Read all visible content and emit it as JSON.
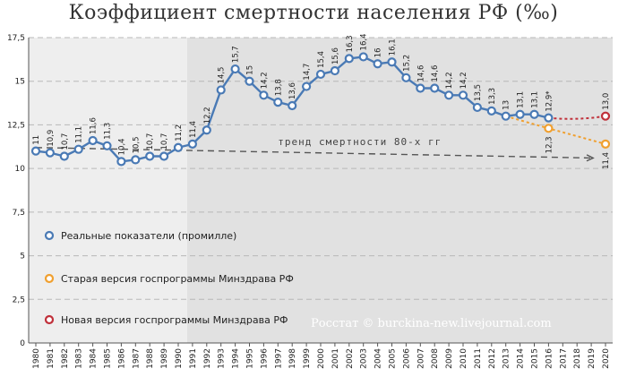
{
  "chart_data": {
    "type": "line",
    "title": "Коэффициент смертности населения РФ (‰)",
    "ylim": [
      0,
      17.5
    ],
    "y_ticks": [
      "0",
      "2,5",
      "5",
      "7,5",
      "10",
      "12,5",
      "15",
      "17,5"
    ],
    "x": [
      "1980",
      "1981",
      "1982",
      "1983",
      "1984",
      "1985",
      "1986",
      "1987",
      "1988",
      "1989",
      "1990",
      "1991",
      "1992",
      "1993",
      "1994",
      "1995",
      "1996",
      "1997",
      "1998",
      "1999",
      "2000",
      "2001",
      "2002",
      "2003",
      "2004",
      "2005",
      "2006",
      "2007",
      "2008",
      "2009",
      "2010",
      "2011",
      "2012",
      "2013",
      "2014",
      "2015",
      "2016",
      "2017",
      "2018",
      "2019",
      "2020"
    ],
    "grid": true,
    "series": [
      {
        "name": "Реальные показатели (промилле)",
        "color": "#4a7ab5",
        "x": [
          "1980",
          "1981",
          "1982",
          "1983",
          "1984",
          "1985",
          "1986",
          "1987",
          "1988",
          "1989",
          "1990",
          "1991",
          "1992",
          "1993",
          "1994",
          "1995",
          "1996",
          "1997",
          "1998",
          "1999",
          "2000",
          "2001",
          "2002",
          "2003",
          "2004",
          "2005",
          "2006",
          "2007",
          "2008",
          "2009",
          "2010",
          "2011",
          "2012",
          "2013",
          "2014",
          "2015",
          "2016"
        ],
        "values": [
          11.0,
          10.9,
          10.7,
          11.1,
          11.6,
          11.3,
          10.4,
          10.5,
          10.7,
          10.7,
          11.2,
          11.4,
          12.2,
          14.5,
          15.7,
          15.0,
          14.2,
          13.8,
          13.6,
          14.7,
          15.4,
          15.6,
          16.3,
          16.4,
          16.0,
          16.1,
          15.2,
          14.6,
          14.6,
          14.2,
          14.2,
          13.5,
          13.3,
          13.0,
          13.1,
          13.1,
          12.9
        ],
        "labels": [
          "11",
          "10,9",
          "10,7",
          "11,1",
          "11,6",
          "11,3",
          "10,4",
          "10,5",
          "10,7",
          "10,7",
          "11,2",
          "11,4",
          "12,2",
          "14,5",
          "15,7",
          "15",
          "14,2",
          "13,8",
          "13,6",
          "14,7",
          "15,4",
          "15,6",
          "16,3",
          "16,4",
          "16",
          "16,1",
          "15,2",
          "14,6",
          "14,6",
          "14,2",
          "14,2",
          "13,5",
          "13,3",
          "13",
          "13,1",
          "13,1",
          "12,9*"
        ]
      },
      {
        "name": "Старая версия госпрограммы Минздрава РФ",
        "color": "#f0a030",
        "x": [
          "2016",
          "2020"
        ],
        "values": [
          12.3,
          11.4
        ],
        "labels": [
          "12,3",
          "11,4"
        ]
      },
      {
        "name": "Новая версия госпрограммы Минздрава РФ",
        "color": "#c0303a",
        "x": [
          "2020"
        ],
        "values": [
          13.0
        ],
        "labels": [
          "13,0"
        ]
      }
    ],
    "trend": {
      "label": "тренд смертности 80-х гг",
      "from": [
        "1980",
        11.2
      ],
      "to": [
        "2018",
        10.6
      ]
    },
    "source": "Росстат © burckina-new.livejournal.com"
  }
}
